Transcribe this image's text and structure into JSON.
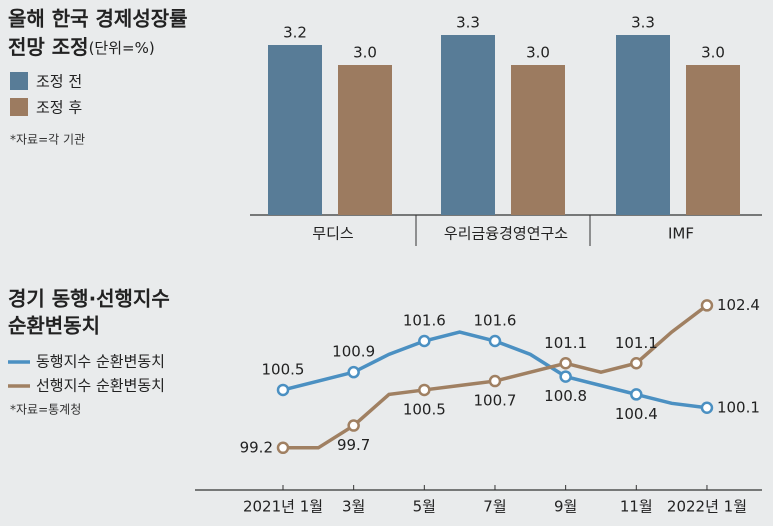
{
  "chart_data": [
    {
      "type": "bar",
      "title": [
        "올해 한국 경제성장률",
        "전망 조정"
      ],
      "subtitle": "(단위=%)",
      "source": "*자료=각 기관",
      "categories": [
        "무디스",
        "우리금융경영연구소",
        "IMF"
      ],
      "series": [
        {
          "name": "조정 전",
          "color": "#587c97",
          "values": [
            3.2,
            3.3,
            3.3
          ]
        },
        {
          "name": "조정 후",
          "color": "#9c7b60",
          "values": [
            3.0,
            3.0,
            3.0
          ],
          "value_labels": [
            "3.0",
            "3.0",
            "3.0"
          ]
        }
      ],
      "ylim": [
        1.5,
        3.5
      ]
    },
    {
      "type": "line",
      "title": [
        "경기 동행·선행지수",
        "순환변동치"
      ],
      "source": "*자료=통계청",
      "categories": [
        "2021년 1월",
        null,
        "3월",
        null,
        "5월",
        null,
        "7월",
        null,
        "9월",
        null,
        "11월",
        null,
        "2022년 1월"
      ],
      "series": [
        {
          "name": "동행지수 순환변동치",
          "color": "#4b90c2",
          "values": [
            100.5,
            100.7,
            100.9,
            101.3,
            101.6,
            101.8,
            101.6,
            101.3,
            100.8,
            100.6,
            100.4,
            100.2,
            100.1
          ]
        },
        {
          "name": "선행지수 순환변동치",
          "color": "#a08062",
          "values": [
            99.2,
            99.2,
            99.7,
            100.4,
            100.5,
            100.6,
            100.7,
            100.9,
            101.1,
            100.9,
            101.1,
            101.8,
            102.4
          ]
        }
      ],
      "ylim": [
        98.8,
        102.8
      ]
    }
  ]
}
